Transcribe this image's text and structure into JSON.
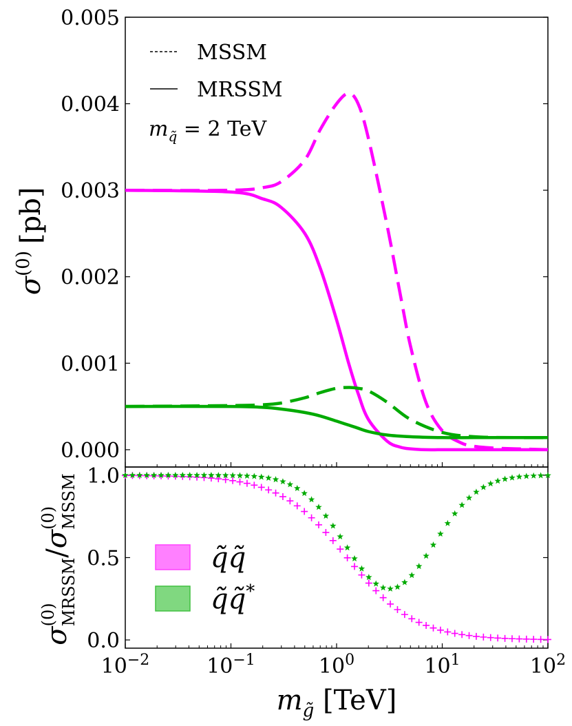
{
  "chart_data": [
    {
      "type": "line",
      "panel": "top",
      "x_scale": "log",
      "xlim": [
        0.01,
        100
      ],
      "ylim": [
        -0.0002,
        0.005
      ],
      "yticks": [
        0.0,
        0.001,
        0.002,
        0.003,
        0.004,
        0.005
      ],
      "ytick_labels": [
        "0.000",
        "0.001",
        "0.002",
        "0.003",
        "0.004",
        "0.005"
      ],
      "ylabel": "σ(0) [pb]",
      "legend": [
        {
          "label": "MSSM",
          "style": "dashed"
        },
        {
          "label": "MRSSM",
          "style": "solid"
        }
      ],
      "annotation": "m_q̃ = 2 TeV",
      "series": [
        {
          "name": "q̃q̃ MSSM",
          "color": "#ff00ff",
          "style": "dashed",
          "x": [
            0.01,
            0.1,
            0.2,
            0.3,
            0.5,
            0.7,
            1.0,
            1.3,
            1.6,
            2.0,
            3.0,
            4.0,
            5.0,
            7.0,
            10.0,
            15.0,
            20.0,
            30.0,
            50.0,
            100.0
          ],
          "y": [
            0.003,
            0.003,
            0.00303,
            0.0031,
            0.00335,
            0.0037,
            0.004,
            0.00412,
            0.004,
            0.0036,
            0.0026,
            0.0018,
            0.0012,
            0.00055,
            0.00022,
            8e-05,
            4e-05,
            2e-05,
            1e-05,
            0.0
          ]
        },
        {
          "name": "q̃q̃ MRSSM",
          "color": "#ff00ff",
          "style": "solid",
          "x": [
            0.01,
            0.1,
            0.2,
            0.3,
            0.5,
            0.7,
            1.0,
            1.3,
            1.6,
            2.0,
            3.0,
            4.0,
            5.0,
            7.0,
            10.0,
            20.0,
            50.0,
            100.0
          ],
          "y": [
            0.003,
            0.00298,
            0.0029,
            0.0028,
            0.0025,
            0.0021,
            0.0015,
            0.001,
            0.00065,
            0.00035,
            0.0001,
            3e-05,
            1e-05,
            0.0,
            0.0,
            0.0,
            0.0,
            0.0
          ]
        },
        {
          "name": "q̃q̃* MSSM",
          "color": "#00aa00",
          "style": "dashed",
          "x": [
            0.01,
            0.1,
            0.2,
            0.3,
            0.5,
            0.7,
            1.0,
            1.3,
            1.6,
            2.0,
            3.0,
            5.0,
            10.0,
            20.0,
            50.0,
            100.0
          ],
          "y": [
            0.0005,
            0.00051,
            0.00052,
            0.00054,
            0.0006,
            0.00066,
            0.00071,
            0.00072,
            0.00071,
            0.00068,
            0.00055,
            0.00035,
            0.0002,
            0.00015,
            0.00014,
            0.00014
          ]
        },
        {
          "name": "q̃q̃* MRSSM",
          "color": "#00aa00",
          "style": "solid",
          "x": [
            0.01,
            0.1,
            0.2,
            0.3,
            0.5,
            0.7,
            1.0,
            1.5,
            2.0,
            3.0,
            5.0,
            10.0,
            20.0,
            50.0,
            100.0
          ],
          "y": [
            0.0005,
            0.0005,
            0.00049,
            0.00047,
            0.00043,
            0.00039,
            0.00033,
            0.00026,
            0.00021,
            0.00017,
            0.00015,
            0.00014,
            0.00014,
            0.00014,
            0.00014
          ]
        }
      ]
    },
    {
      "type": "scatter",
      "panel": "bottom",
      "x_scale": "log",
      "xlim": [
        0.01,
        100
      ],
      "ylim": [
        -0.05,
        1.05
      ],
      "yticks": [
        0.0,
        0.5,
        1.0
      ],
      "ytick_labels": [
        "0.0",
        "0.5",
        "1.0"
      ],
      "xticks": [
        0.01,
        0.1,
        1,
        10,
        100
      ],
      "xtick_labels": [
        {
          "base": "10",
          "exp": "−2"
        },
        {
          "base": "10",
          "exp": "−1"
        },
        {
          "base": "10",
          "exp": "0"
        },
        {
          "base": "10",
          "exp": "1"
        },
        {
          "base": "10",
          "exp": "2"
        }
      ],
      "xlabel": "m_g̃ [TeV]",
      "ylabel": "σ(0)MRSSM / σ(0)MSSM",
      "legend": [
        {
          "label": "q̃q̃",
          "color": "#ff80ff"
        },
        {
          "label": "q̃q̃*",
          "color": "#80d880"
        }
      ],
      "series": [
        {
          "name": "q̃q̃",
          "marker": "+",
          "color": "#ff00ff",
          "log10_center": 0.1,
          "log10_width": 0.32
        },
        {
          "name": "q̃q̃*",
          "marker": "star",
          "color": "#00aa00",
          "log10_center": 0.5,
          "log10_width": 0.22,
          "dip_depth": 0.69,
          "dip_sigma": 0.42
        }
      ]
    }
  ],
  "labels": {
    "top_ylabel_sigma": "σ",
    "top_ylabel_sup": "(0)",
    "top_ylabel_unit": "[pb]",
    "legend_mssm": "MSSM",
    "legend_mrssm": "MRSSM",
    "annotation_m": "m",
    "annotation_sub": "q̃",
    "annotation_rest": " = 2 TeV",
    "bottom_ylabel_sigma": "σ",
    "bottom_ylabel_sup": "(0)",
    "bottom_ylabel_sub1": "MRSSM",
    "bottom_ylabel_slash": "/",
    "bottom_ylabel_sub2": "MSSM",
    "xlabel_m": "m",
    "xlabel_sub": "g̃",
    "xlabel_unit": " [TeV]",
    "legend_qq": "q̃q̃",
    "legend_qqstar_base": "q̃q̃",
    "legend_qqstar_sup": "*"
  }
}
